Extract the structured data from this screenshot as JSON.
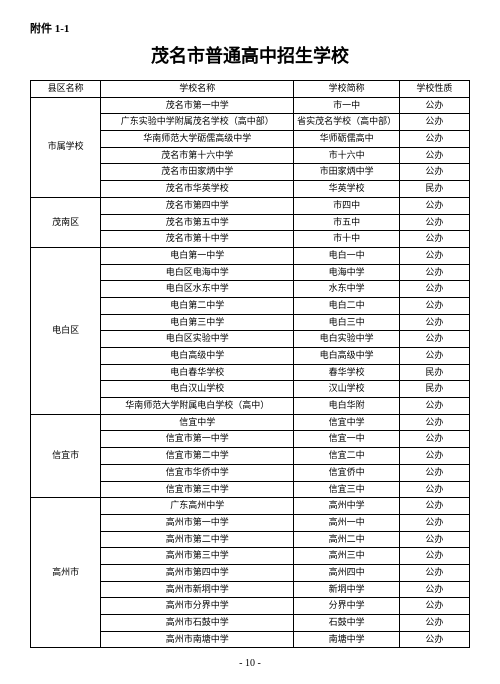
{
  "annex_label": "附件 1-1",
  "title": "茂名市普通高中招生学校",
  "page_number": "- 10 -",
  "columns": [
    "县区名称",
    "学校名称",
    "学校简称",
    "学校性质"
  ],
  "groups": [
    {
      "district": "市属学校",
      "schools": [
        {
          "name": "茂名市第一中学",
          "short": "市一中",
          "type": "公办"
        },
        {
          "name": "广东实验中学附属茂名学校（高中部）",
          "short": "省实茂名学校（高中部）",
          "type": "公办"
        },
        {
          "name": "华南师范大学砺儒高级中学",
          "short": "华师砺儒高中",
          "type": "公办"
        },
        {
          "name": "茂名市第十六中学",
          "short": "市十六中",
          "type": "公办"
        },
        {
          "name": "茂名市田家炳中学",
          "short": "市田家炳中学",
          "type": "公办"
        },
        {
          "name": "茂名市华英学校",
          "short": "华英学校",
          "type": "民办"
        }
      ]
    },
    {
      "district": "茂南区",
      "schools": [
        {
          "name": "茂名市第四中学",
          "short": "市四中",
          "type": "公办"
        },
        {
          "name": "茂名市第五中学",
          "short": "市五中",
          "type": "公办"
        },
        {
          "name": "茂名市第十中学",
          "short": "市十中",
          "type": "公办"
        }
      ]
    },
    {
      "district": "电白区",
      "schools": [
        {
          "name": "电白第一中学",
          "short": "电白一中",
          "type": "公办"
        },
        {
          "name": "电白区电海中学",
          "short": "电海中学",
          "type": "公办"
        },
        {
          "name": "电白区水东中学",
          "short": "水东中学",
          "type": "公办"
        },
        {
          "name": "电白第二中学",
          "short": "电白二中",
          "type": "公办"
        },
        {
          "name": "电白第三中学",
          "short": "电白三中",
          "type": "公办"
        },
        {
          "name": "电白区实验中学",
          "short": "电白实验中学",
          "type": "公办"
        },
        {
          "name": "电白高级中学",
          "short": "电白高级中学",
          "type": "公办"
        },
        {
          "name": "电白春华学校",
          "short": "春华学校",
          "type": "民办"
        },
        {
          "name": "电白汉山学校",
          "short": "汉山学校",
          "type": "民办"
        },
        {
          "name": "华南师范大学附属电白学校（高中）",
          "short": "电白华附",
          "type": "公办"
        }
      ]
    },
    {
      "district": "信宜市",
      "schools": [
        {
          "name": "信宜中学",
          "short": "信宜中学",
          "type": "公办"
        },
        {
          "name": "信宜市第一中学",
          "short": "信宜一中",
          "type": "公办"
        },
        {
          "name": "信宜市第二中学",
          "short": "信宜二中",
          "type": "公办"
        },
        {
          "name": "信宜市华侨中学",
          "short": "信宜侨中",
          "type": "公办"
        },
        {
          "name": "信宜市第三中学",
          "short": "信宜三中",
          "type": "公办"
        }
      ]
    },
    {
      "district": "高州市",
      "schools": [
        {
          "name": "广东高州中学",
          "short": "高州中学",
          "type": "公办"
        },
        {
          "name": "高州市第一中学",
          "short": "高州一中",
          "type": "公办"
        },
        {
          "name": "高州市第二中学",
          "short": "高州二中",
          "type": "公办"
        },
        {
          "name": "高州市第三中学",
          "short": "高州三中",
          "type": "公办"
        },
        {
          "name": "高州市第四中学",
          "short": "高州四中",
          "type": "公办"
        },
        {
          "name": "高州市新垌中学",
          "short": "新垌中学",
          "type": "公办"
        },
        {
          "name": "高州市分界中学",
          "short": "分界中学",
          "type": "公办"
        },
        {
          "name": "高州市石鼓中学",
          "short": "石鼓中学",
          "type": "公办"
        },
        {
          "name": "高州市南塘中学",
          "short": "南塘中学",
          "type": "公办"
        }
      ]
    }
  ]
}
